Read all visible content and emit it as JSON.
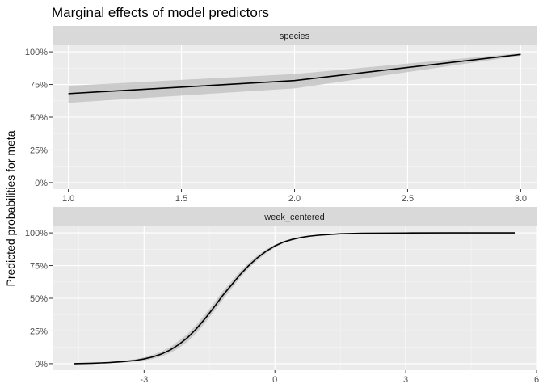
{
  "title": "Marginal effects of model predictors",
  "y_axis_label": "Predicted probabilities for meta",
  "colors": {
    "panel_bg": "#ebebeb",
    "strip_bg": "#d9d9d9",
    "grid_major": "#ffffff",
    "grid_minor": "#f5f5f5",
    "line": "#000000",
    "ribbon": "#bfbfbf",
    "tick": "#333333"
  },
  "chart_data": [
    {
      "type": "line",
      "facet": "species",
      "y_is_percent": true,
      "xlim": [
        0.93,
        3.07
      ],
      "ylim": [
        -0.05,
        1.05
      ],
      "x_ticks": [
        1.0,
        1.5,
        2.0,
        2.5,
        3.0
      ],
      "x_tick_labels": [
        "1.0",
        "1.5",
        "2.0",
        "2.5",
        "3.0"
      ],
      "y_ticks": [
        0,
        0.25,
        0.5,
        0.75,
        1.0
      ],
      "y_tick_labels": [
        "0%",
        "25%",
        "50%",
        "75%",
        "100%"
      ],
      "grid": true,
      "series": [
        {
          "x": [
            1.0,
            2.0,
            3.0
          ],
          "y": [
            0.68,
            0.78,
            0.98
          ],
          "lower": [
            0.61,
            0.72,
            0.97
          ],
          "upper": [
            0.74,
            0.83,
            0.99
          ]
        }
      ]
    },
    {
      "type": "line",
      "facet": "week_centered",
      "y_is_percent": true,
      "xlim": [
        -5.1,
        6.0
      ],
      "ylim": [
        -0.05,
        1.05
      ],
      "x_ticks": [
        -3,
        0,
        3,
        6
      ],
      "x_tick_labels": [
        "-3",
        "0",
        "3",
        "6"
      ],
      "y_ticks": [
        0,
        0.25,
        0.5,
        0.75,
        1.0
      ],
      "y_tick_labels": [
        "0%",
        "25%",
        "50%",
        "75%",
        "100%"
      ],
      "grid": true,
      "series": [
        {
          "x": [
            -4.6,
            -4.2,
            -3.8,
            -3.5,
            -3.2,
            -3.0,
            -2.8,
            -2.6,
            -2.4,
            -2.2,
            -2.0,
            -1.8,
            -1.6,
            -1.4,
            -1.2,
            -1.0,
            -0.8,
            -0.6,
            -0.4,
            -0.2,
            0.0,
            0.2,
            0.4,
            0.6,
            0.8,
            1.0,
            1.5,
            2.0,
            3.0,
            4.0,
            5.5
          ],
          "y": [
            0.0,
            0.003,
            0.008,
            0.015,
            0.025,
            0.036,
            0.052,
            0.074,
            0.105,
            0.147,
            0.2,
            0.267,
            0.345,
            0.43,
            0.52,
            0.6,
            0.68,
            0.75,
            0.81,
            0.86,
            0.9,
            0.93,
            0.95,
            0.965,
            0.975,
            0.982,
            0.993,
            0.997,
            0.999,
            1.0,
            1.0
          ],
          "lower": [
            0.0,
            0.001,
            0.004,
            0.009,
            0.016,
            0.024,
            0.037,
            0.055,
            0.082,
            0.12,
            0.17,
            0.235,
            0.312,
            0.397,
            0.487,
            0.572,
            0.655,
            0.728,
            0.79,
            0.844,
            0.888,
            0.92,
            0.943,
            0.96,
            0.971,
            0.979,
            0.991,
            0.996,
            0.999,
            1.0,
            1.0
          ],
          "upper": [
            0.002,
            0.006,
            0.013,
            0.022,
            0.035,
            0.049,
            0.068,
            0.094,
            0.128,
            0.175,
            0.23,
            0.298,
            0.377,
            0.462,
            0.552,
            0.628,
            0.705,
            0.772,
            0.828,
            0.874,
            0.91,
            0.938,
            0.957,
            0.97,
            0.979,
            0.985,
            0.995,
            0.998,
            1.0,
            1.0,
            1.0
          ]
        }
      ]
    }
  ]
}
